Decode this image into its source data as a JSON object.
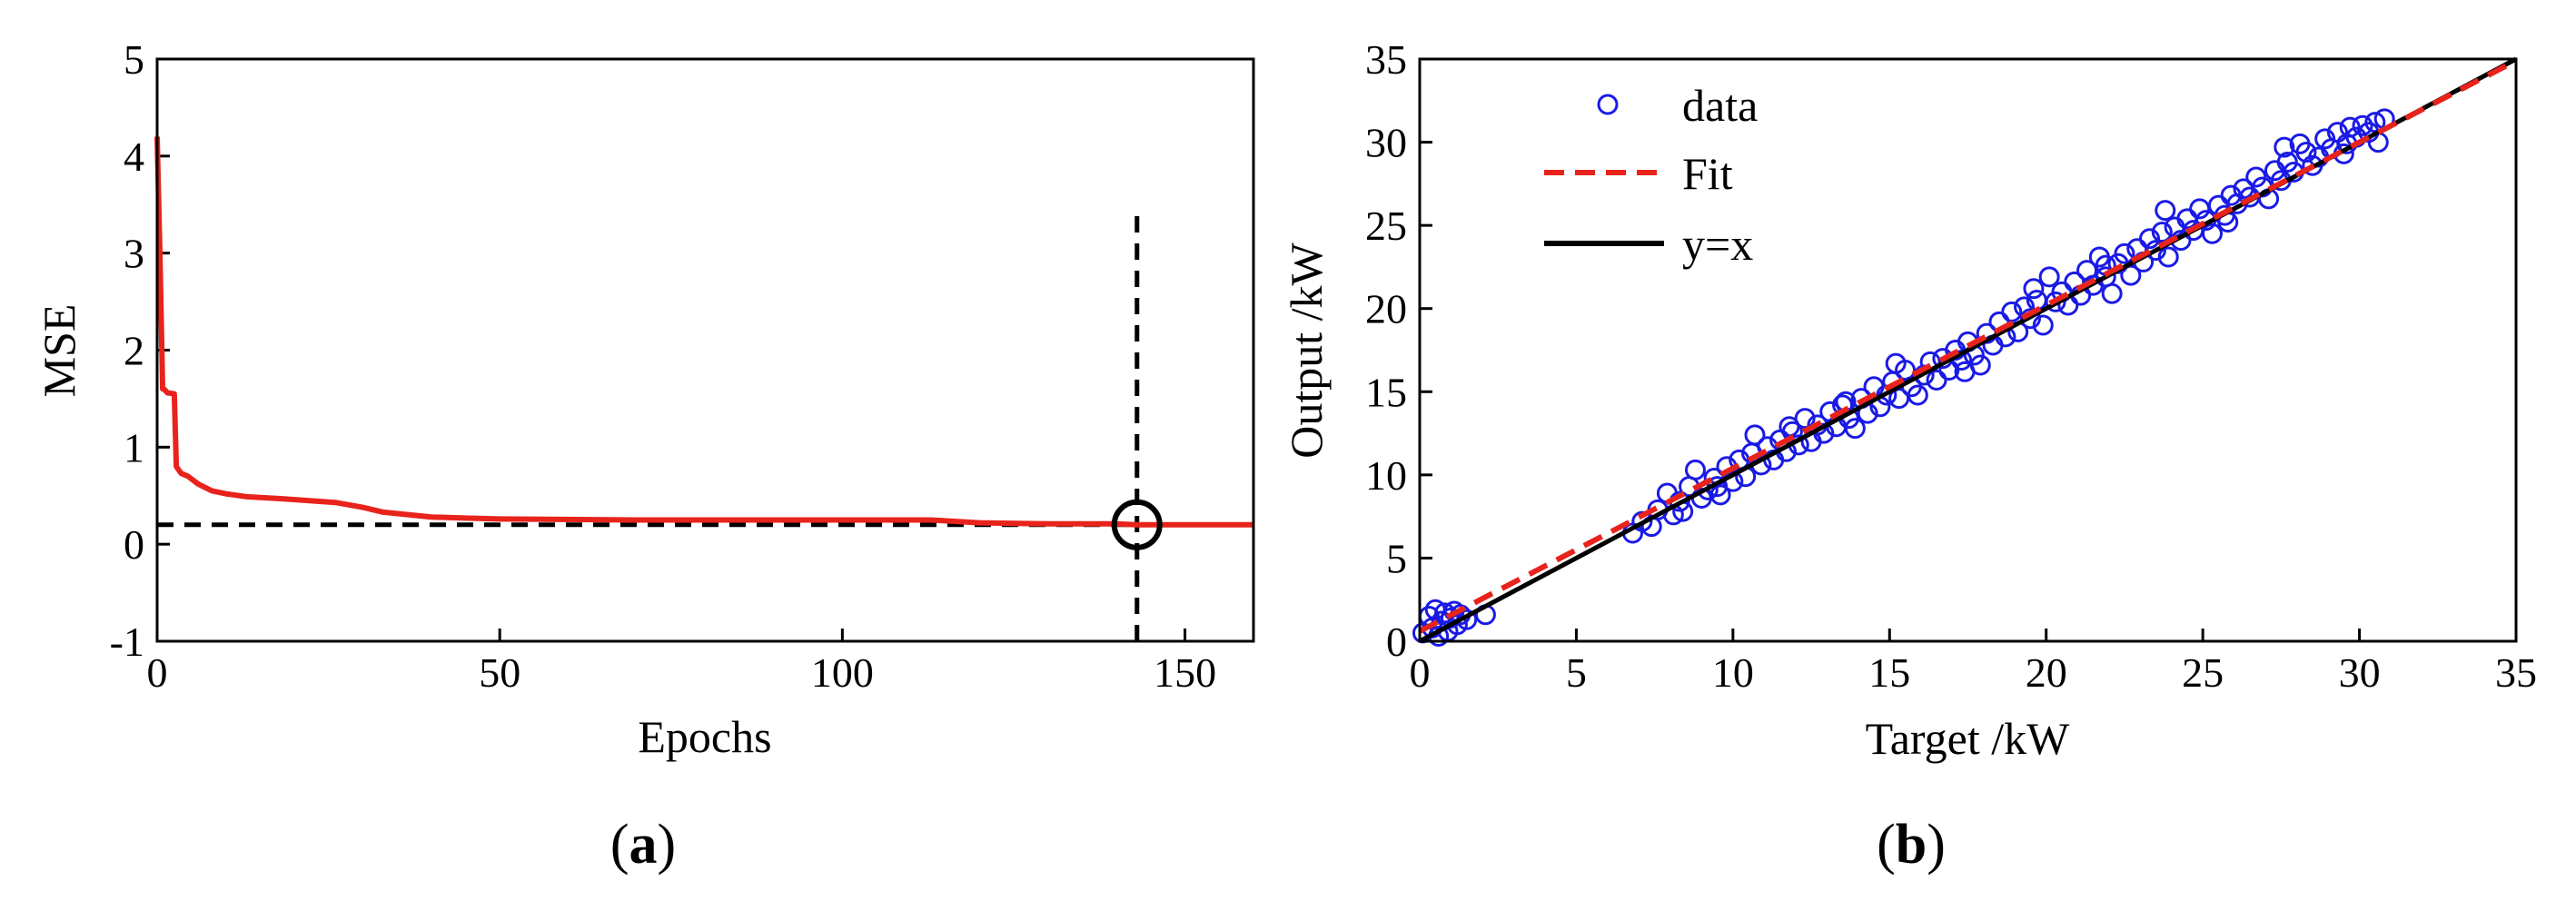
{
  "chart_data": [
    {
      "id": "a",
      "type": "line",
      "panel_label": "a",
      "xlabel": "Epochs",
      "ylabel": "MSE",
      "xlim": [
        0,
        160
      ],
      "ylim": [
        -1,
        5
      ],
      "xticks": [
        "0",
        "50",
        "100",
        "150"
      ],
      "xtick_values": [
        0,
        50,
        100,
        150
      ],
      "yticks": [
        "-1",
        "0",
        "1",
        "2",
        "3",
        "4",
        "5"
      ],
      "ytick_values": [
        -1,
        0,
        1,
        2,
        3,
        4,
        5
      ],
      "series": [
        {
          "name": "MSE",
          "color": "#e8231c",
          "x": [
            0,
            0.4,
            0.8,
            1.0,
            1.5,
            2.5,
            2.8,
            3.5,
            4.5,
            6,
            8,
            10,
            13,
            18,
            22,
            26,
            30,
            33,
            40,
            50,
            70,
            90,
            113,
            120,
            130,
            140,
            143,
            150,
            160
          ],
          "y": [
            4.2,
            3.0,
            1.6,
            1.6,
            1.56,
            1.55,
            0.8,
            0.73,
            0.7,
            0.62,
            0.55,
            0.52,
            0.49,
            0.47,
            0.45,
            0.43,
            0.38,
            0.33,
            0.28,
            0.26,
            0.25,
            0.25,
            0.25,
            0.22,
            0.21,
            0.21,
            0.2,
            0.2,
            0.2
          ]
        }
      ],
      "reference_lines": [
        {
          "orientation": "horizontal",
          "value": 0.2,
          "style": "dashed",
          "color": "#000000"
        },
        {
          "orientation": "vertical",
          "value": 143,
          "style": "dashed",
          "color": "#000000",
          "y_from": -1,
          "y_to": 3.4
        }
      ],
      "marker": {
        "x": 143,
        "y": 0.2,
        "shape": "circle",
        "color": "#000000"
      }
    },
    {
      "id": "b",
      "type": "scatter",
      "panel_label": "b",
      "xlabel": "Target /kW",
      "ylabel": "Output /kW",
      "xlim": [
        0,
        35
      ],
      "ylim": [
        0,
        35
      ],
      "xticks": [
        "0",
        "5",
        "10",
        "15",
        "20",
        "25",
        "30",
        "35"
      ],
      "xtick_values": [
        0,
        5,
        10,
        15,
        20,
        25,
        30,
        35
      ],
      "yticks": [
        "0",
        "5",
        "10",
        "15",
        "20",
        "25",
        "30",
        "35"
      ],
      "ytick_values": [
        0,
        5,
        10,
        15,
        20,
        25,
        30,
        35
      ],
      "legend_position": "top-left",
      "legend": [
        {
          "label": "data",
          "kind": "marker",
          "color": "#1a1ae6"
        },
        {
          "label": "Fit",
          "kind": "dashed-line",
          "color": "#e8231c"
        },
        {
          "label": "y=x",
          "kind": "solid-line",
          "color": "#000000"
        }
      ],
      "fit_line": {
        "slope": 0.98,
        "intercept": 0.6,
        "color": "#e8231c"
      },
      "identity_line": {
        "slope": 1,
        "intercept": 0,
        "color": "#000000"
      },
      "scatter_color": "#1a1ae6",
      "scatter_points": [
        [
          0.1,
          0.5
        ],
        [
          0.3,
          1.5
        ],
        [
          0.4,
          0.8
        ],
        [
          0.5,
          1.9
        ],
        [
          0.6,
          0.3
        ],
        [
          0.7,
          1.2
        ],
        [
          0.8,
          1.7
        ],
        [
          0.9,
          0.6
        ],
        [
          1.0,
          1.4
        ],
        [
          1.1,
          1.8
        ],
        [
          1.2,
          1.0
        ],
        [
          1.3,
          1.6
        ],
        [
          1.5,
          1.3
        ],
        [
          2.1,
          1.6
        ],
        [
          6.8,
          6.5
        ],
        [
          7.1,
          7.2
        ],
        [
          7.4,
          6.9
        ],
        [
          7.6,
          7.9
        ],
        [
          7.9,
          8.9
        ],
        [
          8.1,
          7.6
        ],
        [
          8.3,
          8.4
        ],
        [
          8.6,
          9.3
        ],
        [
          8.8,
          10.3
        ],
        [
          9.0,
          8.6
        ],
        [
          9.2,
          9.1
        ],
        [
          9.4,
          9.8
        ],
        [
          9.6,
          8.8
        ],
        [
          9.8,
          10.5
        ],
        [
          10.0,
          9.6
        ],
        [
          10.2,
          10.9
        ],
        [
          10.4,
          9.9
        ],
        [
          10.6,
          11.3
        ],
        [
          10.7,
          12.4
        ],
        [
          10.9,
          10.6
        ],
        [
          11.1,
          11.7
        ],
        [
          11.3,
          10.9
        ],
        [
          11.5,
          12.1
        ],
        [
          11.7,
          11.4
        ],
        [
          11.9,
          12.6
        ],
        [
          12.1,
          11.8
        ],
        [
          12.3,
          13.4
        ],
        [
          12.5,
          12.0
        ],
        [
          12.7,
          13.0
        ],
        [
          12.9,
          12.5
        ],
        [
          13.1,
          13.8
        ],
        [
          13.3,
          12.9
        ],
        [
          13.5,
          14.2
        ],
        [
          13.7,
          13.4
        ],
        [
          13.9,
          12.8
        ],
        [
          14.1,
          14.6
        ],
        [
          14.3,
          13.7
        ],
        [
          14.5,
          15.3
        ],
        [
          14.7,
          14.1
        ],
        [
          14.9,
          14.8
        ],
        [
          15.1,
          15.6
        ],
        [
          15.3,
          14.6
        ],
        [
          15.5,
          16.3
        ],
        [
          15.7,
          15.3
        ],
        [
          15.9,
          14.8
        ],
        [
          16.1,
          16.0
        ],
        [
          16.3,
          16.8
        ],
        [
          16.5,
          15.7
        ],
        [
          16.7,
          17.0
        ],
        [
          16.9,
          16.3
        ],
        [
          17.1,
          17.5
        ],
        [
          17.3,
          16.9
        ],
        [
          17.5,
          18.0
        ],
        [
          17.7,
          17.2
        ],
        [
          17.9,
          16.6
        ],
        [
          18.1,
          18.5
        ],
        [
          18.3,
          17.8
        ],
        [
          18.5,
          19.2
        ],
        [
          18.7,
          18.3
        ],
        [
          18.9,
          19.8
        ],
        [
          19.1,
          18.6
        ],
        [
          19.3,
          20.1
        ],
        [
          19.5,
          19.4
        ],
        [
          19.7,
          20.5
        ],
        [
          19.9,
          19.0
        ],
        [
          20.1,
          21.9
        ],
        [
          20.3,
          20.4
        ],
        [
          20.5,
          21.0
        ],
        [
          20.7,
          20.2
        ],
        [
          20.9,
          21.6
        ],
        [
          21.1,
          20.8
        ],
        [
          21.3,
          22.3
        ],
        [
          21.5,
          21.4
        ],
        [
          21.7,
          23.1
        ],
        [
          21.9,
          21.9
        ],
        [
          22.1,
          20.9
        ],
        [
          22.3,
          22.7
        ],
        [
          22.5,
          23.3
        ],
        [
          22.7,
          22.0
        ],
        [
          22.9,
          23.6
        ],
        [
          23.1,
          22.8
        ],
        [
          23.3,
          24.2
        ],
        [
          23.5,
          23.5
        ],
        [
          23.7,
          24.6
        ],
        [
          23.9,
          23.1
        ],
        [
          24.1,
          24.9
        ],
        [
          24.3,
          24.1
        ],
        [
          24.5,
          25.4
        ],
        [
          24.7,
          24.7
        ],
        [
          24.9,
          26.0
        ],
        [
          25.1,
          25.3
        ],
        [
          25.3,
          24.5
        ],
        [
          25.5,
          26.2
        ],
        [
          25.7,
          25.6
        ],
        [
          25.9,
          26.8
        ],
        [
          26.1,
          26.3
        ],
        [
          26.3,
          27.2
        ],
        [
          26.5,
          26.7
        ],
        [
          26.7,
          27.9
        ],
        [
          26.9,
          27.3
        ],
        [
          27.1,
          26.6
        ],
        [
          27.3,
          28.3
        ],
        [
          27.5,
          27.7
        ],
        [
          27.7,
          28.8
        ],
        [
          27.9,
          28.2
        ],
        [
          28.1,
          29.9
        ],
        [
          28.3,
          29.4
        ],
        [
          28.5,
          28.6
        ],
        [
          28.7,
          29.1
        ],
        [
          28.9,
          30.2
        ],
        [
          29.1,
          29.6
        ],
        [
          29.3,
          30.6
        ],
        [
          29.5,
          29.3
        ],
        [
          29.7,
          30.9
        ],
        [
          29.9,
          30.3
        ],
        [
          30.1,
          31.0
        ],
        [
          30.3,
          30.6
        ],
        [
          30.5,
          31.2
        ],
        [
          30.6,
          30.0
        ],
        [
          30.8,
          31.4
        ],
        [
          8.4,
          7.8
        ],
        [
          11.8,
          12.9
        ],
        [
          15.2,
          16.7
        ],
        [
          19.6,
          21.2
        ],
        [
          23.8,
          25.9
        ],
        [
          27.6,
          29.7
        ],
        [
          9.5,
          9.3
        ],
        [
          13.6,
          14.4
        ],
        [
          17.4,
          16.2
        ],
        [
          21.9,
          22.6
        ],
        [
          25.8,
          25.2
        ],
        [
          29.6,
          29.9
        ]
      ]
    }
  ]
}
